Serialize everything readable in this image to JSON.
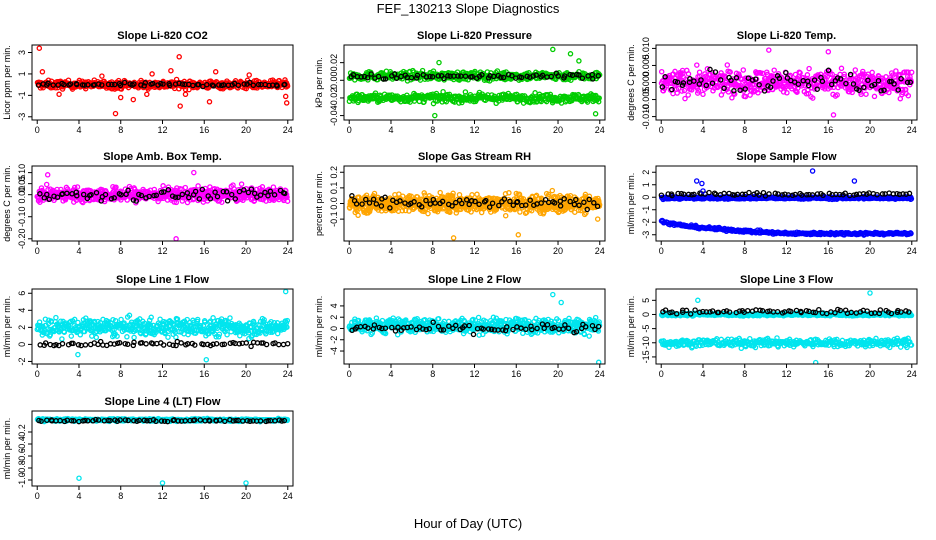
{
  "page": {
    "title": "FEF_130213  Slope Diagnostics",
    "x_axis_title": "Hour of Day (UTC)"
  },
  "colors": {
    "black": "#000000",
    "red": "#ff0000",
    "green": "#00cc00",
    "magenta": "#ff00ff",
    "orange": "#ffa500",
    "blue": "#0000ff",
    "cyan": "#00e5ee"
  },
  "chart_data": [
    {
      "type": "scatter",
      "title": "Slope Li-820 CO2",
      "ylabel": "Licor ppm per min.",
      "xlabel": "",
      "xlim": [
        -0.5,
        24.5
      ],
      "ylim": [
        -3.3,
        3.7
      ],
      "x_ticks": [
        0,
        4,
        8,
        12,
        16,
        20,
        24
      ],
      "y_ticks": [
        -3,
        -1,
        1,
        3
      ],
      "series": [
        {
          "name": "all",
          "color": "#ff0000",
          "band": {
            "center": 0.0,
            "spread": 0.45,
            "n": 520
          }
        },
        {
          "name": "hourly",
          "color": "#000000",
          "band": {
            "center": 0.0,
            "spread": 0.2,
            "n": 70
          }
        }
      ],
      "outliers": [
        [
          0.2,
          3.4
        ],
        [
          0.5,
          1.2
        ],
        [
          2.1,
          -0.9
        ],
        [
          6.2,
          0.8
        ],
        [
          7.5,
          -2.7
        ],
        [
          8.0,
          -1.2
        ],
        [
          9.2,
          -1.4
        ],
        [
          10.5,
          -0.9
        ],
        [
          11.0,
          1.0
        ],
        [
          12.8,
          1.3
        ],
        [
          13.6,
          2.6
        ],
        [
          13.7,
          -2.0
        ],
        [
          14.2,
          -0.9
        ],
        [
          16.5,
          -1.6
        ],
        [
          17.1,
          1.2
        ],
        [
          20.3,
          0.9
        ],
        [
          23.8,
          -1.1
        ],
        [
          23.9,
          -1.7
        ]
      ]
    },
    {
      "type": "scatter",
      "title": "Slope Li-820 Pressure",
      "ylabel": "kPa per min.",
      "xlabel": "",
      "xlim": [
        -0.5,
        24.5
      ],
      "ylim": [
        -0.045,
        0.04
      ],
      "x_ticks": [
        0,
        4,
        8,
        12,
        16,
        20,
        24
      ],
      "y_ticks": [
        -0.04,
        -0.02,
        0.0,
        0.02
      ],
      "series": [
        {
          "name": "all-upper",
          "color": "#00cc00",
          "band": {
            "center": 0.005,
            "spread": 0.006,
            "n": 420
          }
        },
        {
          "name": "all-lower",
          "color": "#00cc00",
          "band": {
            "center": -0.02,
            "spread": 0.006,
            "n": 420
          }
        },
        {
          "name": "hourly",
          "color": "#000000",
          "band": {
            "center": 0.004,
            "spread": 0.004,
            "n": 70
          }
        }
      ],
      "outliers": [
        [
          8.2,
          -0.04
        ],
        [
          8.6,
          0.02
        ],
        [
          19.5,
          0.035
        ],
        [
          21.2,
          0.03
        ],
        [
          23.6,
          -0.038
        ],
        [
          22.0,
          0.022
        ]
      ]
    },
    {
      "type": "scatter",
      "title": "Slope Li-820 Temp.",
      "ylabel": "degrees C per min.",
      "xlabel": "",
      "xlim": [
        -0.5,
        24.5
      ],
      "ylim": [
        -0.011,
        0.011
      ],
      "x_ticks": [
        0,
        4,
        8,
        12,
        16,
        20,
        24
      ],
      "y_ticks": [
        -0.01,
        -0.005,
        0.0,
        0.005,
        0.01
      ],
      "series": [
        {
          "name": "all",
          "color": "#ff00ff",
          "band": {
            "center": 0.0,
            "spread": 0.0045,
            "n": 560
          }
        },
        {
          "name": "hourly",
          "color": "#000000",
          "band": {
            "center": 0.0,
            "spread": 0.0035,
            "n": 70
          }
        }
      ],
      "outliers": [
        [
          10.3,
          0.0095
        ],
        [
          16.5,
          -0.0095
        ],
        [
          16.0,
          0.009
        ]
      ]
    },
    {
      "type": "scatter",
      "title": "Slope Amb. Box Temp.",
      "ylabel": "degrees C per min.",
      "xlabel": "",
      "xlim": [
        -0.5,
        24.5
      ],
      "ylim": [
        -0.21,
        0.13
      ],
      "x_ticks": [
        0,
        4,
        8,
        12,
        16,
        20,
        24
      ],
      "y_ticks": [
        -0.2,
        -0.1,
        0.0,
        0.05,
        0.1
      ],
      "series": [
        {
          "name": "all",
          "color": "#ff00ff",
          "band": {
            "center": 0.0,
            "spread": 0.04,
            "n": 600
          }
        },
        {
          "name": "hourly",
          "color": "#000000",
          "band": {
            "center": 0.0,
            "spread": 0.03,
            "n": 70
          }
        }
      ],
      "outliers": [
        [
          13.3,
          -0.2
        ],
        [
          1.0,
          0.09
        ],
        [
          15.0,
          0.1
        ]
      ]
    },
    {
      "type": "scatter",
      "title": "Slope Gas Stream RH",
      "ylabel": "percent per min.",
      "xlabel": "",
      "xlim": [
        -0.5,
        24.5
      ],
      "ylim": [
        -0.24,
        0.24
      ],
      "x_ticks": [
        0,
        4,
        8,
        12,
        16,
        20,
        24
      ],
      "y_ticks": [
        -0.1,
        0.0,
        0.1,
        0.2
      ],
      "series": [
        {
          "name": "all",
          "color": "#ffa500",
          "band": {
            "center": 0.0,
            "spread": 0.07,
            "n": 780
          }
        },
        {
          "name": "hourly",
          "color": "#000000",
          "band": {
            "center": 0.0,
            "spread": 0.04,
            "n": 70
          }
        }
      ],
      "outliers": [
        [
          10.0,
          -0.22
        ],
        [
          16.2,
          -0.2
        ],
        [
          23.8,
          -0.1
        ]
      ]
    },
    {
      "type": "scatter",
      "title": "Slope Sample Flow",
      "ylabel": "ml/min per min.",
      "xlabel": "",
      "xlim": [
        -0.5,
        24.5
      ],
      "ylim": [
        -3.5,
        2.5
      ],
      "x_ticks": [
        0,
        4,
        8,
        12,
        16,
        20,
        24
      ],
      "y_ticks": [
        -3,
        -2,
        -1,
        0,
        1,
        2
      ],
      "series": [
        {
          "name": "all-upper",
          "color": "#0000ff",
          "band": {
            "center": -0.05,
            "spread": 0.12,
            "n": 480
          }
        },
        {
          "name": "all-lower",
          "color": "#0000ff",
          "curve": {
            "start": -1.8,
            "end": -2.9,
            "spread": 0.15,
            "n": 300
          }
        },
        {
          "name": "hourly",
          "color": "#000000",
          "band": {
            "center": 0.25,
            "spread": 0.15,
            "n": 70
          }
        }
      ],
      "outliers": [
        [
          3.4,
          1.3
        ],
        [
          3.9,
          1.1
        ],
        [
          14.5,
          2.1
        ],
        [
          4.0,
          0.5
        ],
        [
          18.5,
          1.3
        ]
      ]
    },
    {
      "type": "scatter",
      "title": "Slope Line 1 Flow",
      "ylabel": "ml/min per min.",
      "xlabel": "",
      "xlim": [
        -0.5,
        24.5
      ],
      "ylim": [
        -2.3,
        6.5
      ],
      "x_ticks": [
        0,
        4,
        8,
        12,
        16,
        20,
        24
      ],
      "y_ticks": [
        -2,
        0,
        2,
        4,
        6
      ],
      "series": [
        {
          "name": "all",
          "color": "#00e5ee",
          "band": {
            "center": 2.0,
            "spread": 1.3,
            "n": 520
          }
        },
        {
          "name": "hourly",
          "color": "#000000",
          "band": {
            "center": 0.05,
            "spread": 0.3,
            "n": 70
          }
        }
      ],
      "outliers": [
        [
          23.8,
          6.2
        ],
        [
          3.9,
          -1.2
        ],
        [
          16.2,
          -1.8
        ]
      ]
    },
    {
      "type": "scatter",
      "title": "Slope Line 2 Flow",
      "ylabel": "ml/min per min.",
      "xlabel": "",
      "xlim": [
        -0.5,
        24.5
      ],
      "ylim": [
        -6.3,
        7.0
      ],
      "x_ticks": [
        0,
        4,
        8,
        12,
        16,
        20,
        24
      ],
      "y_ticks": [
        -4,
        -2,
        0,
        2,
        4
      ],
      "series": [
        {
          "name": "all",
          "color": "#00e5ee",
          "band": {
            "center": 0.5,
            "spread": 1.6,
            "n": 560
          }
        },
        {
          "name": "hourly",
          "color": "#000000",
          "band": {
            "center": 0.0,
            "spread": 1.0,
            "n": 70
          }
        }
      ],
      "outliers": [
        [
          23.9,
          -6.0
        ],
        [
          20.3,
          4.6
        ],
        [
          19.5,
          6.0
        ]
      ]
    },
    {
      "type": "scatter",
      "title": "Slope Line 3 Flow",
      "ylabel": "ml/min per min.",
      "xlabel": "",
      "xlim": [
        -0.5,
        24.5
      ],
      "ylim": [
        -17.5,
        9.0
      ],
      "x_ticks": [
        0,
        4,
        8,
        12,
        16,
        20,
        24
      ],
      "y_ticks": [
        -15,
        -10,
        -5,
        0,
        5
      ],
      "series": [
        {
          "name": "all-upper",
          "color": "#00e5ee",
          "band": {
            "center": 0.0,
            "spread": 0.6,
            "n": 460
          }
        },
        {
          "name": "all-lower",
          "color": "#00e5ee",
          "band": {
            "center": -10.0,
            "spread": 1.8,
            "n": 380
          }
        },
        {
          "name": "hourly",
          "color": "#000000",
          "band": {
            "center": 1.0,
            "spread": 1.0,
            "n": 70
          }
        }
      ],
      "outliers": [
        [
          3.5,
          5.0
        ],
        [
          20.0,
          7.6
        ],
        [
          14.8,
          -17.0
        ]
      ]
    },
    {
      "type": "scatter",
      "title": "Slope Line 4 (LT) Flow",
      "ylabel": "ml/min per min.",
      "xlabel": "",
      "xlim": [
        -0.5,
        24.5
      ],
      "ylim": [
        -1.1,
        0.15
      ],
      "x_ticks": [
        0,
        4,
        8,
        12,
        16,
        20,
        24
      ],
      "y_ticks": [
        -1.0,
        -0.8,
        -0.6,
        -0.4,
        -0.2
      ],
      "series": [
        {
          "name": "all",
          "color": "#00e5ee",
          "band": {
            "center": 0.0,
            "spread": 0.025,
            "n": 520
          }
        },
        {
          "name": "hourly",
          "color": "#000000",
          "band": {
            "center": -0.01,
            "spread": 0.02,
            "n": 70
          }
        }
      ],
      "outliers": [
        [
          4.0,
          -0.97
        ],
        [
          12.0,
          -1.05
        ],
        [
          20.0,
          -1.05
        ]
      ]
    }
  ]
}
